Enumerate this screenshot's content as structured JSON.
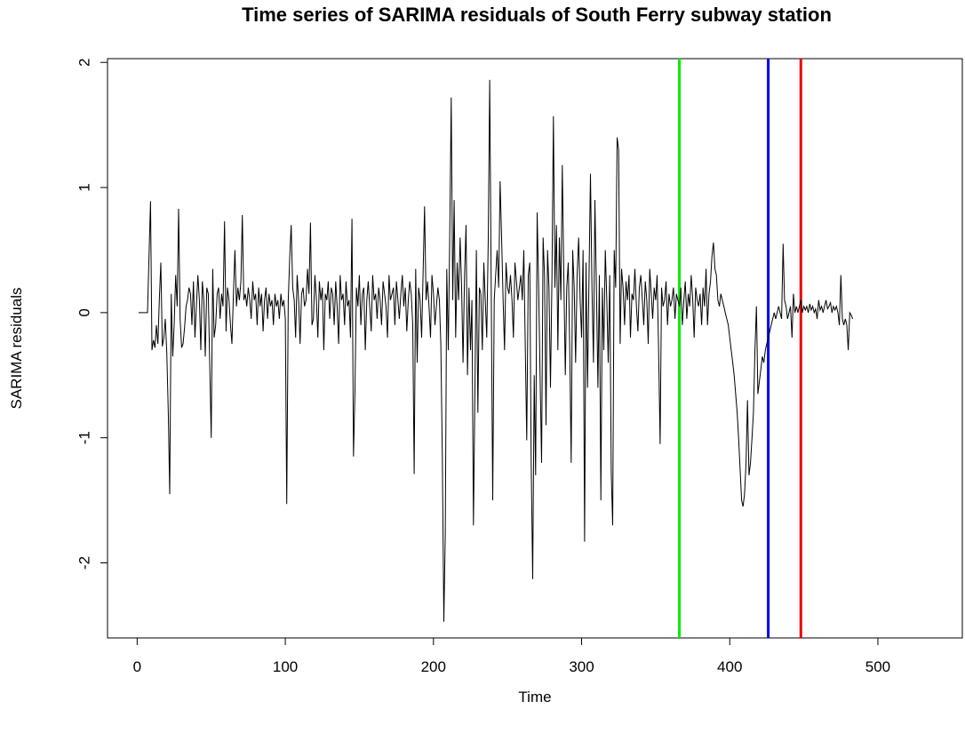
{
  "chart_data": {
    "type": "line",
    "title": "Time series of SARIMA residuals of South Ferry subway station",
    "xlabel": "Time",
    "ylabel": "SARIMA residuals",
    "xlim": [
      -20,
      557
    ],
    "ylim": [
      -2.6,
      2.03
    ],
    "x_ticks": [
      0,
      100,
      200,
      300,
      400,
      500
    ],
    "y_ticks": [
      -2,
      -1,
      0,
      1,
      2
    ],
    "grid": false,
    "legend": "none",
    "series": [
      {
        "color": "#000000",
        "x_start": 1,
        "x_step": 1,
        "values": [
          0,
          0,
          0,
          0,
          0,
          0,
          0,
          0.45,
          0.89,
          -0.3,
          -0.22,
          -0.28,
          -0.1,
          -0.25,
          0.12,
          0.4,
          -0.27,
          -0.2,
          -0.05,
          -0.32,
          -0.8,
          -1.45,
          0.15,
          -0.35,
          -0.1,
          0.3,
          0.05,
          0.83,
          -0.05,
          -0.28,
          -0.25,
          -0.12,
          0.05,
          0.1,
          0.2,
          0.15,
          -0.1,
          0.25,
          -0.2,
          0.05,
          0.3,
          0.1,
          -0.3,
          0.25,
          0.1,
          -0.35,
          0.2,
          0.15,
          -0.4,
          -1.0,
          0.35,
          -0.2,
          -0.1,
          0.15,
          0.2,
          -0.05,
          0.15,
          0.05,
          0.73,
          -0.15,
          0.2,
          0.1,
          -0.1,
          -0.25,
          0.15,
          0.5,
          0.05,
          0.2,
          0.1,
          0.25,
          0.78,
          0.1,
          0.15,
          0.05,
          0.2,
          0.1,
          -0.05,
          0.25,
          0.1,
          0.15,
          -0.1,
          0.2,
          0.05,
          0.15,
          -0.15,
          0.1,
          0.2,
          -0.05,
          0.15,
          0.05,
          0.1,
          -0.1,
          0.15,
          0.05,
          0.1,
          -0.05,
          0.15,
          0.05,
          0.1,
          -0.05,
          -1.53,
          0.1,
          0.45,
          0.7,
          0.2,
          0.1,
          -0.2,
          0.3,
          0.1,
          -0.25,
          0.15,
          0.2,
          0.05,
          0.1,
          0.35,
          0.15,
          0.72,
          -0.1,
          -0.05,
          0.3,
          0.1,
          -0.2,
          0.25,
          0.1,
          0.2,
          -0.3,
          0.15,
          0.1,
          0.25,
          -0.05,
          0.2,
          0.15,
          -0.1,
          0.25,
          0.05,
          -0.25,
          0.3,
          0.1,
          0.15,
          -0.1,
          0.25,
          0.05,
          0.1,
          -0.2,
          0.75,
          -1.15,
          -0.65,
          0.2,
          0.05,
          0.3,
          -0.1,
          0.15,
          0.2,
          -0.3,
          0.1,
          0.25,
          0.05,
          -0.15,
          0.3,
          0.1,
          0.15,
          -0.05,
          0.2,
          0.1,
          -0.1,
          0.25,
          0.15,
          0.05,
          -0.2,
          0.3,
          0.1,
          0.15,
          0.2,
          -0.1,
          0.25,
          0.1,
          -0.05,
          0.15,
          0.3,
          0.05,
          0.2,
          -0.15,
          0.1,
          0.25,
          0.15,
          -0.1,
          -1.29,
          0.35,
          -0.4,
          0.2,
          0.1,
          -0.2,
          0.3,
          0.85,
          0.1,
          0.25,
          0.05,
          -0.2,
          0.3,
          0.15,
          -0.1,
          0.05,
          0.2,
          0.1,
          -0.25,
          -1.15,
          -2.47,
          -1.78,
          0.35,
          -0.3,
          0.6,
          1.72,
          0.1,
          0.9,
          -0.2,
          0.4,
          0.1,
          0.6,
          0.2,
          -0.4,
          0.3,
          0.7,
          -0.5,
          0.2,
          -0.3,
          0.1,
          -1.7,
          -0.6,
          0.5,
          -0.8,
          0.2,
          0.15,
          -0.3,
          0.4,
          0.1,
          -0.2,
          0.6,
          1.86,
          0.2,
          -1.5,
          0.1,
          0.3,
          0.5,
          0.2,
          1.05,
          0.6,
          0.1,
          -0.3,
          0.4,
          0.2,
          0.15,
          0.3,
          0.1,
          -0.2,
          0.4,
          0.25,
          0.1,
          0.2,
          0.3,
          0.1,
          0.5,
          -0.3,
          -1.02,
          0.3,
          0.4,
          -1.2,
          -2.13,
          -0.5,
          -1.3,
          0.8,
          0.2,
          -0.5,
          -1.2,
          0.6,
          0.3,
          -0.9,
          0.5,
          0.2,
          -0.6,
          0.3,
          1.57,
          0.2,
          0.7,
          -0.3,
          0.6,
          0.1,
          1.18,
          0.3,
          -0.5,
          0.2,
          0.4,
          -0.3,
          -1.2,
          0.5,
          0.2,
          -0.4,
          0.3,
          0.6,
          0.1,
          -0.2,
          0.5,
          -1.83,
          0.4,
          -0.6,
          0.3,
          1.11,
          0.2,
          -0.4,
          0.9,
          0.2,
          -0.6,
          0.3,
          -1.5,
          0.2,
          -0.3,
          0.5,
          0.1,
          -0.4,
          0.3,
          -1.28,
          -1.7,
          0.5,
          0.2,
          1.4,
          1.3,
          -0.25,
          0.35,
          0.2,
          -0.1,
          0.25,
          0.1,
          0.3,
          -0.2,
          0.15,
          0.1,
          0.35,
          0.05,
          -0.15,
          0.2,
          0.3,
          0.1,
          -0.1,
          0.25,
          0.1,
          -0.25,
          0.35,
          0.15,
          -0.05,
          0.2,
          0.1,
          0.3,
          -0.3,
          -1.05,
          0.2,
          0.05,
          0.1,
          0.25,
          -0.1,
          0.15,
          0.05,
          0.1,
          0.2,
          -0.05,
          0.15,
          0.1,
          0.05,
          0.2,
          -0.1,
          0.1,
          0.25,
          -0.05,
          0.15,
          0.05,
          0.3,
          0.1,
          -0.2,
          0.2,
          0.1,
          0.05,
          0.15,
          -0.1,
          0.2,
          0.05,
          0.35,
          -0.1,
          0.15,
          0.25,
          0.45,
          0.56,
          0.35,
          0.3,
          0.1,
          0.05,
          0.15,
          0.1,
          0.05,
          0.0,
          -0.05,
          -0.1,
          -0.2,
          -0.3,
          -0.4,
          -0.5,
          -0.65,
          -0.8,
          -1.0,
          -1.25,
          -1.5,
          -1.55,
          -1.45,
          -1.2,
          -0.7,
          -1.3,
          -1.2,
          -1.0,
          -0.8,
          -0.3,
          0.05,
          -0.65,
          -0.55,
          -0.45,
          -0.35,
          -0.4,
          -0.3,
          -0.25,
          -0.2,
          -0.15,
          -0.1,
          -0.05,
          0.0,
          -0.05,
          0.0,
          0.05,
          0.0,
          -0.05,
          0.55,
          0.1,
          0.05,
          -0.05,
          0.0,
          0.05,
          -0.2,
          0.15,
          0.0,
          0.05,
          0.0,
          0.05,
          0.1,
          0.0,
          0.05,
          0.02,
          0.05,
          0.0,
          0.07,
          0.02,
          0.05,
          0.0,
          0.03,
          -0.05,
          0.1,
          0.02,
          0.05,
          0.0,
          0.05,
          0.1,
          0.03,
          0.05,
          0.08,
          0.0,
          0.05,
          0.02,
          0.05,
          0.0,
          -0.1,
          0.3,
          -0.05,
          -0.1,
          -0.05,
          -0.1,
          -0.3,
          0.0,
          -0.02,
          -0.05
        ]
      }
    ],
    "vertical_lines": [
      {
        "x": 366,
        "color": "#00ee00"
      },
      {
        "x": 426,
        "color": "#0000ee"
      },
      {
        "x": 448,
        "color": "#ee0000"
      }
    ]
  }
}
